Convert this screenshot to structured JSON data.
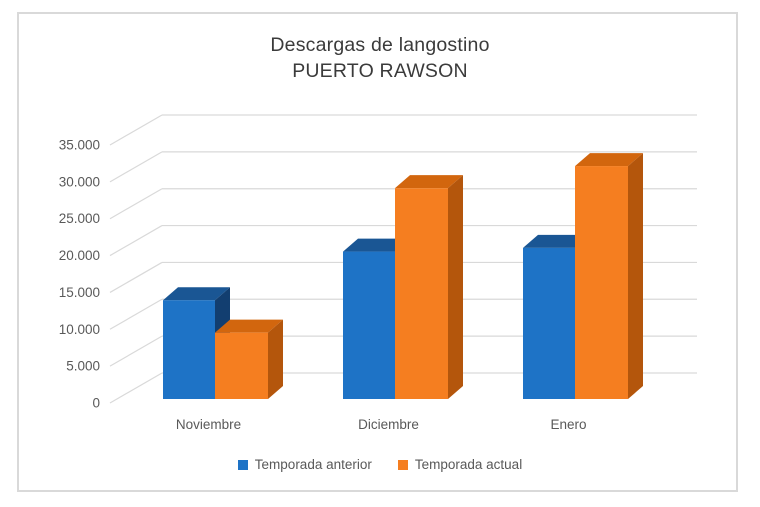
{
  "title": {
    "line1": "Descargas de langostino",
    "line2": "PUERTO RAWSON"
  },
  "colors": {
    "background": "#ffffff",
    "frame_border": "#d9d9d9",
    "gridline": "#d9d9d9",
    "text_muted": "#595959",
    "title_text": "#3b3b3b",
    "series_blue": "#1E73C6",
    "series_orange": "#F57E20"
  },
  "chart_data": {
    "type": "bar",
    "projection": "3d-clustered",
    "title": "Descargas de langostino PUERTO RAWSON",
    "categories": [
      "Noviembre",
      "Diciembre",
      "Enero"
    ],
    "series": [
      {
        "name": "Temporada anterior",
        "colors": {
          "front": "#1E73C6",
          "top": "#1A5694",
          "side": "#123E70"
        },
        "values": [
          13400,
          20000,
          20500
        ]
      },
      {
        "name": "Temporada actual",
        "colors": {
          "front": "#F57E20",
          "top": "#D2660E",
          "side": "#B4560C"
        },
        "values": [
          9000,
          28600,
          31600
        ]
      }
    ],
    "xlabel": "",
    "ylabel": "",
    "axis": {
      "min": 0,
      "max": 35000,
      "step": 5000,
      "tick_labels": [
        "0",
        "5.000",
        "10.000",
        "15.000",
        "20.000",
        "25.000",
        "30.000",
        "35.000"
      ]
    },
    "grid": true,
    "legend_position": "bottom"
  }
}
